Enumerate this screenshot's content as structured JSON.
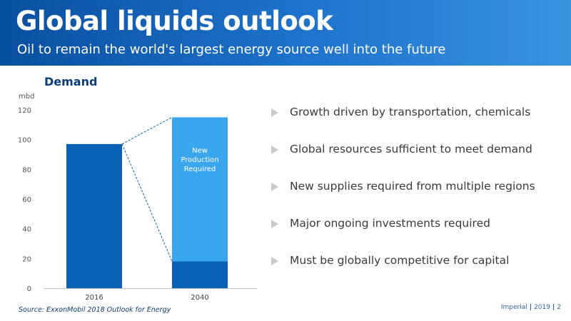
{
  "slide": {
    "title": "Global liquids outlook",
    "subtitle": "Oil to remain the world's largest energy source well into the future",
    "section_title": "Demand",
    "source": "Source: ExxonMobil 2018 Outlook for Energy"
  },
  "bullets": [
    "Growth driven by transportation, chemicals",
    "Global resources sufficient to meet demand",
    "New supplies required from multiple regions",
    "Major ongoing investments required",
    "Must be globally competitive for capital"
  ],
  "footer": {
    "brand": "Imperial",
    "year": "2019",
    "page": "2"
  },
  "colors": {
    "header_dark": "#0a4fa0",
    "bar_dark": "#0a62b4",
    "bar_light": "#3aa6ee",
    "dashed": "#0a62b4",
    "bullet_marker": "#c9c9c9"
  },
  "chart_data": {
    "type": "bar",
    "stacked": true,
    "ylabel": "mbd",
    "ylim": [
      0,
      120
    ],
    "yticks": [
      0,
      20,
      40,
      60,
      80,
      100,
      120
    ],
    "categories": [
      "2016",
      "2040"
    ],
    "series": [
      {
        "color": "#0a62b4",
        "values": [
          97,
          18
        ]
      },
      {
        "color": "#3aa6ee",
        "values": [
          0,
          97
        ]
      }
    ],
    "annotation": {
      "text": "New Production Required",
      "category": "2040"
    },
    "connector": "dashed lines from top of 2016 bar to top and bottom of New Production Required segment",
    "grid": false
  }
}
